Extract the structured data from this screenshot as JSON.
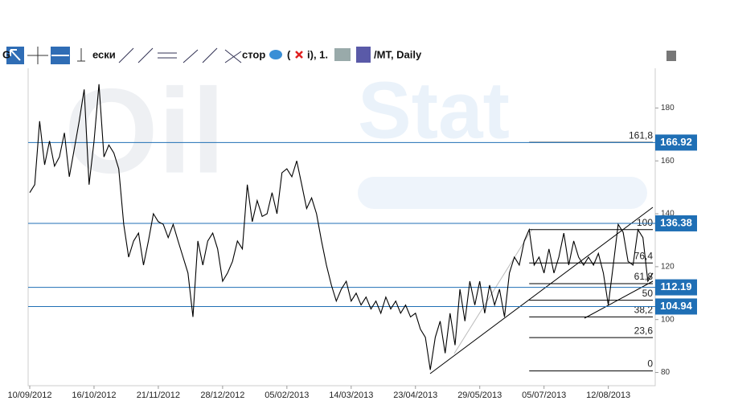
{
  "toolbar": [
    "G",
    "ески",
    "стор",
    "(",
    "i), 1.",
    "/MT, Daily"
  ],
  "watermark": [
    "Oil",
    "Stat"
  ],
  "chart_data": {
    "type": "line",
    "series": [
      {
        "color": "#000000",
        "values": [
          148,
          151,
          175,
          158.5,
          167.5,
          158,
          161.5,
          170.6,
          154,
          164.5,
          175,
          187,
          151,
          167.5,
          189,
          161.5,
          166,
          163,
          157,
          136,
          123.6,
          129.7,
          132.7,
          120.6,
          129.7,
          140,
          137,
          136,
          131,
          136,
          129.7,
          123.6,
          117.6,
          101,
          129.7,
          120.6,
          129.7,
          132.7,
          126.7,
          114.5,
          117.6,
          122,
          129.7,
          126.7,
          151,
          137,
          145,
          139,
          140,
          148,
          140,
          155.5,
          157,
          154,
          160,
          151,
          142,
          146,
          140,
          129.7,
          120.6,
          113,
          107,
          111.5,
          114.5,
          107,
          110,
          105.5,
          108.5,
          104,
          107,
          102.4,
          108.5,
          104,
          107,
          102.4,
          105.5,
          101,
          102.4,
          96.4,
          93.3,
          81,
          93.3,
          99.4,
          87.3,
          102.4,
          90.3,
          111.5,
          99.4,
          114.5,
          105.5,
          114.5,
          102.4,
          113,
          105.5,
          111.5,
          101,
          117.6,
          123.6,
          120.6,
          129.7,
          134,
          120.6,
          123.6,
          117.6,
          126.7,
          117.6,
          123.6,
          132.7,
          120.6,
          129.7,
          123.6,
          120.6,
          123.6,
          120.6,
          125,
          117.6,
          105.5,
          120.6,
          136,
          133,
          122,
          120.6,
          134,
          131,
          114.5,
          117.6
        ]
      }
    ],
    "xlim": [
      0,
      126
    ],
    "xticks": [
      {
        "value": 0,
        "label": "10/09/2012"
      },
      {
        "value": 13,
        "label": "16/10/2012"
      },
      {
        "value": 26,
        "label": "21/11/2012"
      },
      {
        "value": 39,
        "label": "28/12/2012"
      },
      {
        "value": 52,
        "label": "05/02/2013"
      },
      {
        "value": 65,
        "label": "14/03/2013"
      },
      {
        "value": 78,
        "label": "23/04/2013"
      },
      {
        "value": 91,
        "label": "29/05/2013"
      },
      {
        "value": 104,
        "label": "05/07/2013"
      },
      {
        "value": 117,
        "label": "12/08/2013"
      }
    ],
    "ylim": [
      75,
      195
    ],
    "yticks": [
      80,
      100,
      120,
      140,
      160,
      180
    ],
    "hlines": {
      "color": "#1f6fb5",
      "values": [
        166.92,
        136.38,
        112.19,
        104.94
      ]
    },
    "fibonacci": {
      "low": 80.6,
      "high": 134,
      "start": 101,
      "levels": [
        {
          "value": 161.8,
          "label": "161,8"
        },
        {
          "value": 100,
          "label": "100"
        },
        {
          "value": 76.4,
          "label": "76,4"
        },
        {
          "value": 61.8,
          "label": "61,8"
        },
        {
          "value": 50,
          "label": "50"
        },
        {
          "value": 38.2,
          "label": "38,2"
        },
        {
          "value": 23.6,
          "label": "23,6"
        },
        {
          "value": 0,
          "label": "0"
        }
      ]
    }
  }
}
